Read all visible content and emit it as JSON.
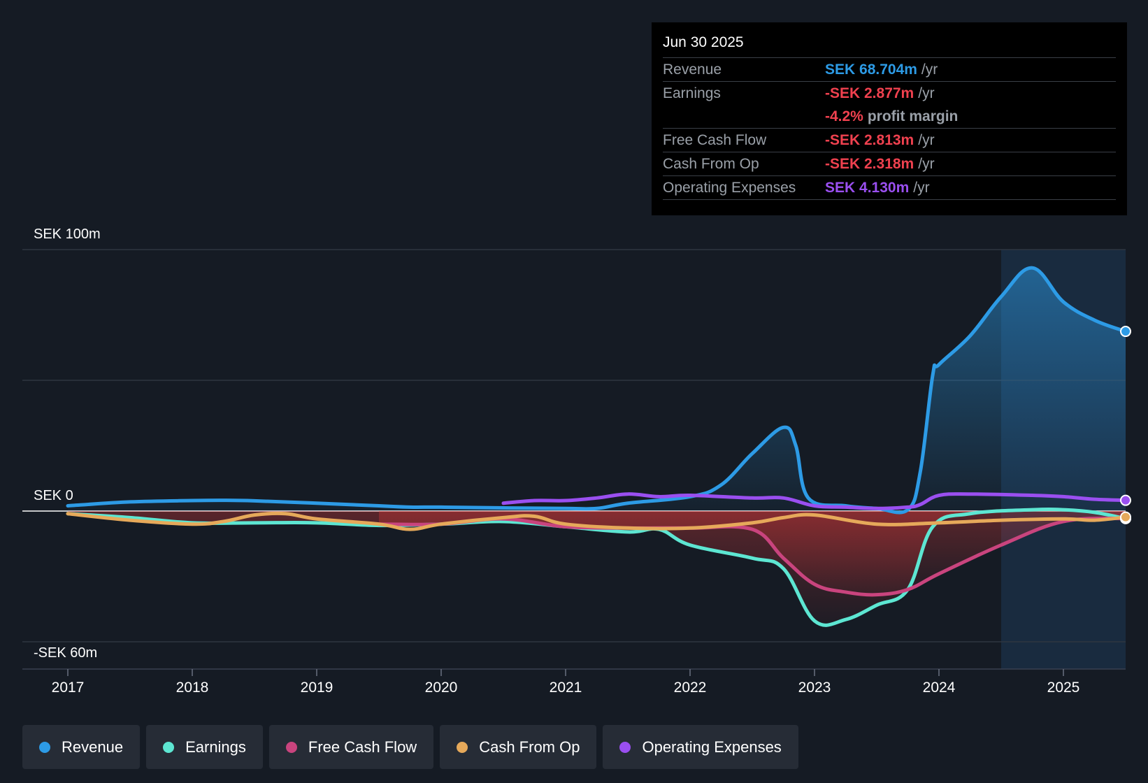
{
  "tooltip": {
    "date": "Jun 30 2025",
    "rows": [
      {
        "label": "Revenue",
        "value": "SEK 68.704m",
        "unit": "/yr",
        "color": "#2d9be6"
      },
      {
        "label": "Earnings",
        "value": "-SEK 2.877m",
        "unit": "/yr",
        "color": "#f0414f"
      },
      {
        "label": "",
        "value": "-4.2%",
        "unit": "profit margin",
        "color": "#f0414f"
      },
      {
        "label": "Free Cash Flow",
        "value": "-SEK 2.813m",
        "unit": "/yr",
        "color": "#f0414f"
      },
      {
        "label": "Cash From Op",
        "value": "-SEK 2.318m",
        "unit": "/yr",
        "color": "#f0414f"
      },
      {
        "label": "Operating Expenses",
        "value": "SEK 4.130m",
        "unit": "/yr",
        "color": "#9a4ff0"
      }
    ]
  },
  "legend": [
    {
      "label": "Revenue",
      "color": "#2d9be6"
    },
    {
      "label": "Earnings",
      "color": "#5de6d2"
    },
    {
      "label": "Free Cash Flow",
      "color": "#c9447e"
    },
    {
      "label": "Cash From Op",
      "color": "#e6a95a"
    },
    {
      "label": "Operating Expenses",
      "color": "#9a4ff0"
    }
  ],
  "chart_data": {
    "type": "line",
    "title": "",
    "xlabel": "",
    "ylabel": "",
    "y_tick_labels": [
      "SEK 100m",
      "SEK 0",
      "-SEK 60m"
    ],
    "ylim": [
      -60,
      100
    ],
    "xlim": [
      2016.65,
      2025.5
    ],
    "x_ticks": [
      2017,
      2018,
      2019,
      2020,
      2021,
      2022,
      2023,
      2024,
      2025
    ],
    "forecast_region_start": 2024.5,
    "grid": true,
    "legend_position": "bottom",
    "series": [
      {
        "name": "Revenue",
        "color": "#2d9be6",
        "area": true,
        "points": [
          [
            2017.0,
            2.0
          ],
          [
            2017.5,
            3.5
          ],
          [
            2018.0,
            4.0
          ],
          [
            2018.25,
            4.1
          ],
          [
            2018.5,
            3.9
          ],
          [
            2019.0,
            3.0
          ],
          [
            2019.5,
            2.0
          ],
          [
            2019.75,
            1.5
          ],
          [
            2020.0,
            1.5
          ],
          [
            2020.5,
            1.2
          ],
          [
            2021.0,
            1.0
          ],
          [
            2021.25,
            1.0
          ],
          [
            2021.5,
            3.0
          ],
          [
            2022.0,
            5.5
          ],
          [
            2022.25,
            10.0
          ],
          [
            2022.5,
            22.0
          ],
          [
            2022.75,
            32.0
          ],
          [
            2022.85,
            25.0
          ],
          [
            2022.95,
            5.0
          ],
          [
            2023.25,
            2.0
          ],
          [
            2023.5,
            1.0
          ],
          [
            2023.75,
            0.5
          ],
          [
            2023.85,
            15.0
          ],
          [
            2023.95,
            52.0
          ],
          [
            2024.0,
            56.0
          ],
          [
            2024.25,
            67.0
          ],
          [
            2024.5,
            82.0
          ],
          [
            2024.75,
            93.0
          ],
          [
            2025.0,
            80.0
          ],
          [
            2025.25,
            73.0
          ],
          [
            2025.5,
            68.7
          ]
        ]
      },
      {
        "name": "Earnings",
        "color": "#5de6d2",
        "area": true,
        "points": [
          [
            2017.0,
            -1.0
          ],
          [
            2017.5,
            -2.5
          ],
          [
            2018.0,
            -4.5
          ],
          [
            2018.5,
            -4.5
          ],
          [
            2019.0,
            -4.5
          ],
          [
            2019.5,
            -5.5
          ],
          [
            2020.0,
            -5.0
          ],
          [
            2020.5,
            -4.0
          ],
          [
            2021.0,
            -6.0
          ],
          [
            2021.5,
            -8.0
          ],
          [
            2021.75,
            -7.0
          ],
          [
            2022.0,
            -13.0
          ],
          [
            2022.5,
            -18.0
          ],
          [
            2022.75,
            -22.0
          ],
          [
            2023.0,
            -42.0
          ],
          [
            2023.25,
            -41.5
          ],
          [
            2023.5,
            -36.0
          ],
          [
            2023.75,
            -30.0
          ],
          [
            2023.95,
            -6.0
          ],
          [
            2024.25,
            -1.0
          ],
          [
            2024.75,
            0.5
          ],
          [
            2025.0,
            0.5
          ],
          [
            2025.25,
            -0.5
          ],
          [
            2025.5,
            -2.9
          ]
        ]
      },
      {
        "name": "Free Cash Flow",
        "color": "#c9447e",
        "area": true,
        "points": [
          [
            2019.5,
            -5.0
          ],
          [
            2020.0,
            -5.0
          ],
          [
            2020.5,
            -3.0
          ],
          [
            2021.0,
            -6.0
          ],
          [
            2021.5,
            -6.5
          ],
          [
            2022.0,
            -6.5
          ],
          [
            2022.5,
            -7.0
          ],
          [
            2022.75,
            -18.0
          ],
          [
            2023.0,
            -28.0
          ],
          [
            2023.25,
            -31.0
          ],
          [
            2023.5,
            -32.0
          ],
          [
            2023.75,
            -30.0
          ],
          [
            2024.0,
            -24.0
          ],
          [
            2024.5,
            -13.0
          ],
          [
            2025.0,
            -4.0
          ],
          [
            2025.5,
            -2.8
          ]
        ]
      },
      {
        "name": "Cash From Op",
        "color": "#e6a95a",
        "area": false,
        "points": [
          [
            2017.0,
            -1.0
          ],
          [
            2017.5,
            -3.5
          ],
          [
            2018.0,
            -5.0
          ],
          [
            2018.25,
            -4.0
          ],
          [
            2018.5,
            -1.5
          ],
          [
            2018.75,
            -1.0
          ],
          [
            2019.0,
            -3.0
          ],
          [
            2019.5,
            -5.0
          ],
          [
            2019.75,
            -7.0
          ],
          [
            2020.0,
            -5.0
          ],
          [
            2020.5,
            -2.5
          ],
          [
            2020.75,
            -2.0
          ],
          [
            2021.0,
            -5.0
          ],
          [
            2021.5,
            -6.5
          ],
          [
            2022.0,
            -6.5
          ],
          [
            2022.5,
            -4.5
          ],
          [
            2022.75,
            -2.5
          ],
          [
            2023.0,
            -1.5
          ],
          [
            2023.5,
            -5.0
          ],
          [
            2024.0,
            -4.5
          ],
          [
            2024.5,
            -3.5
          ],
          [
            2025.0,
            -3.0
          ],
          [
            2025.25,
            -3.5
          ],
          [
            2025.5,
            -2.3
          ]
        ]
      },
      {
        "name": "Operating Expenses",
        "color": "#9a4ff0",
        "area": false,
        "points": [
          [
            2020.5,
            3.0
          ],
          [
            2020.75,
            4.0
          ],
          [
            2021.0,
            4.0
          ],
          [
            2021.25,
            5.0
          ],
          [
            2021.5,
            6.5
          ],
          [
            2021.75,
            5.5
          ],
          [
            2022.0,
            6.0
          ],
          [
            2022.5,
            5.0
          ],
          [
            2022.75,
            5.0
          ],
          [
            2023.0,
            2.0
          ],
          [
            2023.25,
            1.5
          ],
          [
            2023.5,
            1.0
          ],
          [
            2023.75,
            1.5
          ],
          [
            2023.85,
            2.5
          ],
          [
            2024.0,
            6.0
          ],
          [
            2024.25,
            6.5
          ],
          [
            2024.75,
            6.0
          ],
          [
            2025.0,
            5.5
          ],
          [
            2025.25,
            4.5
          ],
          [
            2025.5,
            4.1
          ]
        ]
      }
    ]
  }
}
